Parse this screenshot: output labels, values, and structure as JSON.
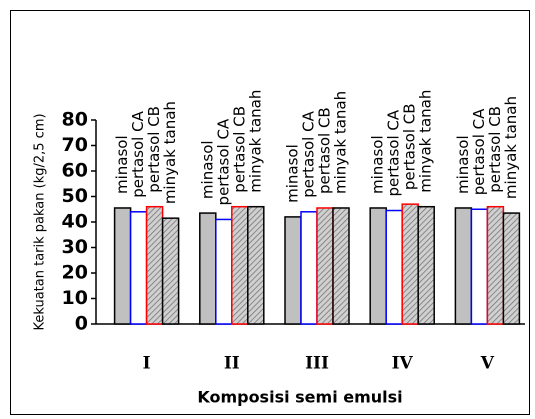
{
  "chart_data": {
    "type": "bar",
    "y_label": "Kekuatan tarik pakan (kg/2,5 cm)",
    "x_label": "Komposisi semi emulsi",
    "categories": [
      "I",
      "II",
      "III",
      "IV",
      "V"
    ],
    "series": [
      {
        "name": "minasol",
        "color": "#c0c0c0",
        "edgecolor": "#000000",
        "hatch": false,
        "values": [
          45.5,
          43.5,
          42,
          45.5,
          45.5
        ]
      },
      {
        "name": "pertasol CA",
        "color": "#ffffff",
        "edgecolor": "#0000ff",
        "hatch": false,
        "values": [
          44,
          41,
          44,
          44.5,
          45
        ]
      },
      {
        "name": "pertasol CB",
        "color": "#c0c0c0",
        "edgecolor": "#ff0000",
        "hatch": true,
        "values": [
          46,
          46,
          45.5,
          47,
          46
        ]
      },
      {
        "name": "minyak tanah",
        "color": "#c0c0c0",
        "edgecolor": "#000000",
        "hatch": true,
        "values": [
          41.5,
          46,
          45.5,
          46,
          43.5
        ]
      }
    ],
    "ylim": [
      0,
      80
    ],
    "yticks": [
      0,
      10,
      20,
      30,
      40,
      50,
      60,
      70,
      80
    ]
  }
}
